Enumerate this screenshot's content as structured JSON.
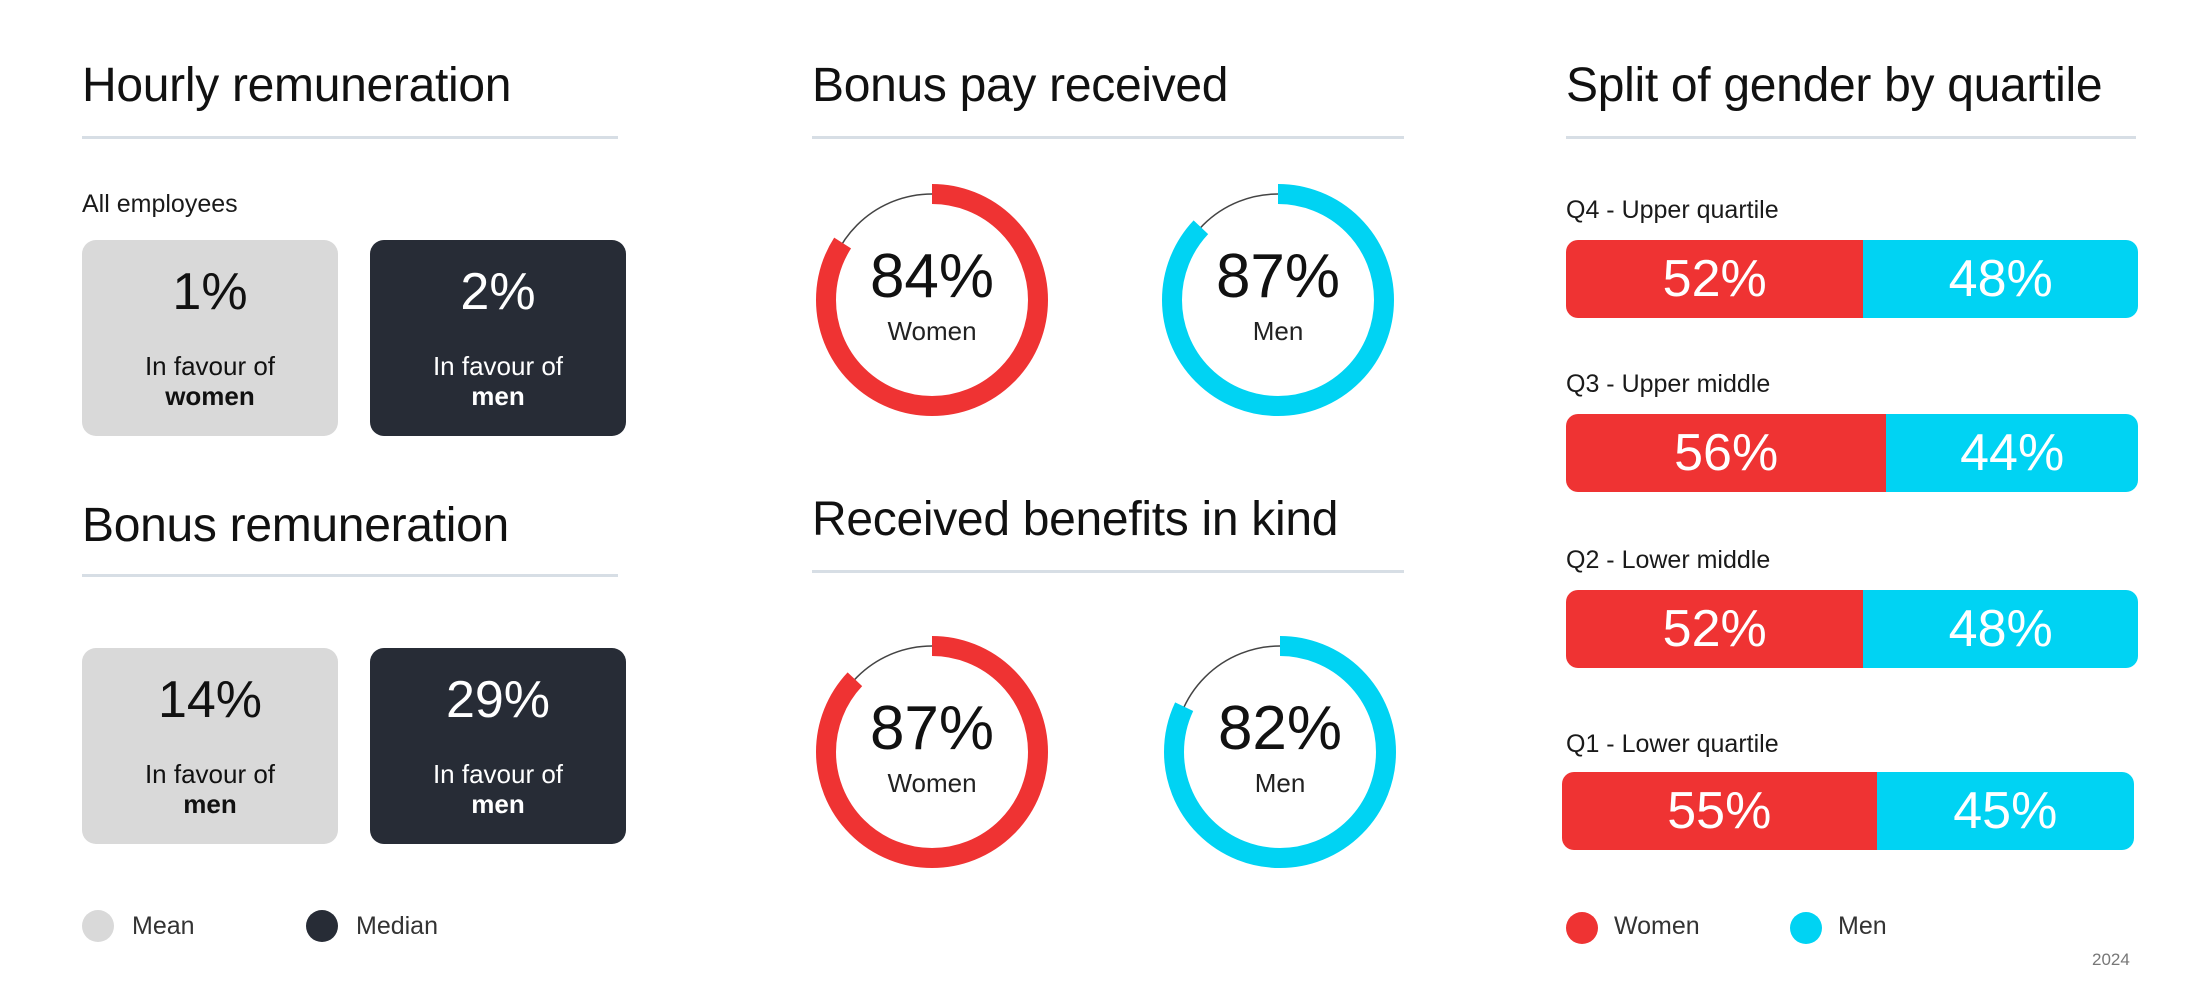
{
  "hourly": {
    "title": "Hourly remuneration",
    "subtitle": "All employees",
    "mean": {
      "value": "1%",
      "line1": "In favour of",
      "line2": "women"
    },
    "median": {
      "value": "2%",
      "line1": "In favour of",
      "line2": "men"
    }
  },
  "bonus_remuneration": {
    "title": "Bonus remuneration",
    "mean": {
      "value": "14%",
      "line1": "In favour of",
      "line2": "men"
    },
    "median": {
      "value": "29%",
      "line1": "In favour of",
      "line2": "men"
    }
  },
  "card_legend": {
    "mean": "Mean",
    "median": "Median"
  },
  "bonus_pay": {
    "title": "Bonus pay received",
    "women": {
      "value": "84%",
      "label": "Women"
    },
    "men": {
      "value": "87%",
      "label": "Men"
    }
  },
  "benefits": {
    "title": "Received benefits in kind",
    "women": {
      "value": "87%",
      "label": "Women"
    },
    "men": {
      "value": "82%",
      "label": "Men"
    }
  },
  "quartiles": {
    "title": "Split of gender by quartile",
    "rows": [
      {
        "label": "Q4 - Upper quartile",
        "women": "52%",
        "men": "48%"
      },
      {
        "label": "Q3 - Upper middle",
        "women": "56%",
        "men": "44%"
      },
      {
        "label": "Q2 - Lower middle",
        "women": "52%",
        "men": "48%"
      },
      {
        "label": "Q1 - Lower quartile",
        "women": "55%",
        "men": "45%"
      }
    ]
  },
  "gender_legend": {
    "women": "Women",
    "men": "Men"
  },
  "year": "2024",
  "colors": {
    "women": "#ef3333",
    "men": "#00d3f3",
    "mean_card": "#d9d9d9",
    "median_card": "#272c36",
    "rule": "#d7dee5"
  },
  "chart_data": [
    {
      "type": "table",
      "title": "Hourly remuneration",
      "subtitle": "All employees",
      "columns": [
        "Mean",
        "Median"
      ],
      "values": [
        1,
        2
      ],
      "favour": [
        "women",
        "men"
      ]
    },
    {
      "type": "table",
      "title": "Bonus remuneration",
      "columns": [
        "Mean",
        "Median"
      ],
      "values": [
        14,
        29
      ],
      "favour": [
        "men",
        "men"
      ]
    },
    {
      "type": "pie",
      "title": "Bonus pay received",
      "categories": [
        "Women",
        "Men"
      ],
      "values": [
        84,
        87
      ]
    },
    {
      "type": "pie",
      "title": "Received benefits in kind",
      "categories": [
        "Women",
        "Men"
      ],
      "values": [
        87,
        82
      ]
    },
    {
      "type": "bar",
      "title": "Split of gender by quartile",
      "categories": [
        "Q4 - Upper quartile",
        "Q3 - Upper middle",
        "Q2 - Lower middle",
        "Q1 - Lower quartile"
      ],
      "series": [
        {
          "name": "Women",
          "values": [
            52,
            56,
            52,
            55
          ]
        },
        {
          "name": "Men",
          "values": [
            48,
            44,
            48,
            45
          ]
        }
      ],
      "ylim": [
        0,
        100
      ]
    }
  ]
}
